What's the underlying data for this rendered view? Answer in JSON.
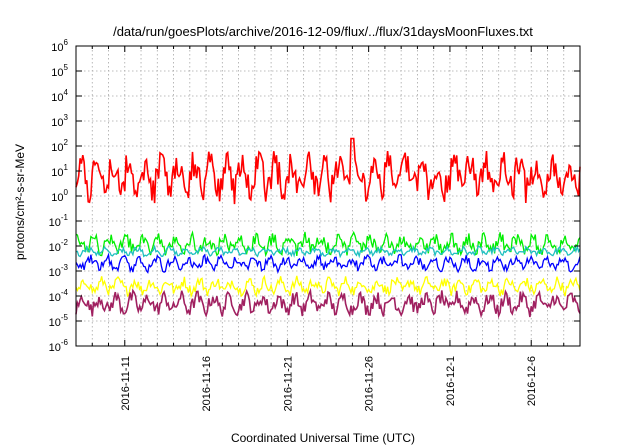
{
  "chart_data": {
    "type": "line",
    "title": "/data/run/goesPlots/archive/2016-12-09/flux/../flux/31daysMoonFluxes.txt",
    "xlabel": "Coordinated Universal Time (UTC)",
    "ylabel": "protons/cm²-s-sr-MeV",
    "yscale": "log",
    "ylim": [
      1e-06,
      1000000.0
    ],
    "xlim": [
      "2016-11-08",
      "2016-12-09"
    ],
    "x_ticks": [
      "2016-11-11",
      "2016-11-16",
      "2016-11-21",
      "2016-11-26",
      "2016-12-1",
      "2016-12-6"
    ],
    "y_ticks": [
      {
        "base": "10",
        "exp": "-6"
      },
      {
        "base": "10",
        "exp": "-5"
      },
      {
        "base": "10",
        "exp": "-4"
      },
      {
        "base": "10",
        "exp": "-3"
      },
      {
        "base": "10",
        "exp": "-2"
      },
      {
        "base": "10",
        "exp": "-1"
      },
      {
        "base": "10",
        "exp": "0"
      },
      {
        "base": "10",
        "exp": "1"
      },
      {
        "base": "10",
        "exp": "2"
      },
      {
        "base": "10",
        "exp": "3"
      },
      {
        "base": "10",
        "exp": "4"
      },
      {
        "base": "10",
        "exp": "5"
      },
      {
        "base": "10",
        "exp": "6"
      }
    ],
    "grid": true,
    "legend": "none",
    "series": [
      {
        "color": "#ff0000",
        "typical": 6,
        "low": 0.4,
        "high": 200
      },
      {
        "color": "#00ee00",
        "typical": 0.012,
        "low": 0.004,
        "high": 0.06
      },
      {
        "color": "#0000ff",
        "typical": 0.002,
        "low": 0.0008,
        "high": 0.006
      },
      {
        "color": "#20c0c0",
        "typical": 0.006,
        "low": 0.003,
        "high": 0.01
      },
      {
        "color": "#ffff00",
        "typical": 0.00025,
        "low": 0.0001,
        "high": 0.001
      },
      {
        "color": "#a02060",
        "typical": 5e-05,
        "low": 1e-05,
        "high": 0.0002
      }
    ]
  }
}
